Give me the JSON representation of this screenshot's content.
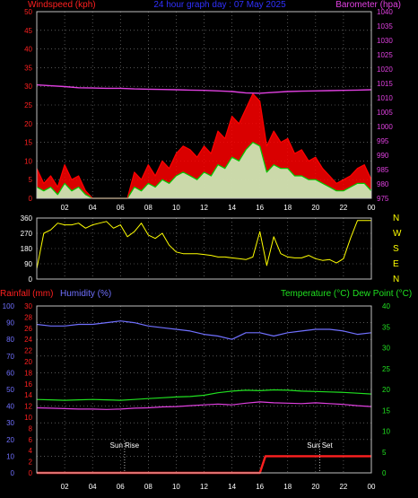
{
  "colors": {
    "background": "#000000",
    "frame": "#c0c0c0",
    "grid": "#8a8a8a",
    "tick_text": "#ffffff",
    "wind_title": "#ff2020",
    "baro_title": "#e040e0",
    "period_title": "#3030ff",
    "rain": "#ff2020",
    "humidity": "#7070ff",
    "temperature": "#20e020",
    "dew_point": "#e040e0",
    "gust": "#ff0000",
    "avg_wind": "#00cc00",
    "wind_fill": "#c8ffc8",
    "wind_dir": "#ffff00",
    "compass_text": "#ffff00",
    "sun_text": "#ffffff"
  },
  "chart_data": [
    {
      "id": "wind-baro",
      "type": "line",
      "title": "24 hour graph day : 07 May 2025",
      "ylabel": "Windspeed (kph)",
      "y2label": "Barometer (hpa)",
      "x_ticks": [
        "02",
        "04",
        "06",
        "08",
        "10",
        "12",
        "14",
        "16",
        "18",
        "20",
        "22",
        "00"
      ],
      "x_range_hours": [
        0,
        24
      ],
      "ylim": [
        0,
        50
      ],
      "y_ticks": [
        0,
        5,
        10,
        15,
        20,
        25,
        30,
        35,
        40,
        45,
        50
      ],
      "y2lim": [
        975,
        1040
      ],
      "y2_ticks": [
        975,
        980,
        985,
        990,
        995,
        1000,
        1005,
        1010,
        1015,
        1020,
        1025,
        1030,
        1035,
        1040
      ],
      "grid": true,
      "series": [
        {
          "name": "Barometer (hpa)",
          "axis": "right",
          "x": [
            0,
            1,
            2,
            3,
            4,
            5,
            6,
            7,
            8,
            9,
            10,
            11,
            12,
            13,
            14,
            15,
            16,
            17,
            18,
            19,
            20,
            21,
            22,
            23,
            24
          ],
          "values": [
            1014.5,
            1014.2,
            1013.9,
            1013.5,
            1013.4,
            1013.3,
            1013.3,
            1013.1,
            1013.0,
            1012.9,
            1012.8,
            1012.7,
            1012.6,
            1012.4,
            1012.2,
            1011.7,
            1011.6,
            1011.9,
            1012.2,
            1012.3,
            1012.4,
            1012.5,
            1012.6,
            1012.7,
            1012.8
          ]
        },
        {
          "name": "Gust (kph)",
          "axis": "left",
          "x": [
            0,
            0.5,
            1,
            1.5,
            2,
            2.5,
            3,
            3.5,
            4,
            4.5,
            5,
            5.5,
            6,
            6.5,
            7,
            7.5,
            8,
            8.5,
            9,
            9.5,
            10,
            10.5,
            11,
            11.5,
            12,
            12.5,
            13,
            13.5,
            14,
            14.5,
            15,
            15.5,
            16,
            16.5,
            17,
            17.5,
            18,
            18.5,
            19,
            19.5,
            20,
            20.5,
            21,
            21.5,
            22,
            22.5,
            23,
            23.5,
            24
          ],
          "values": [
            8,
            4,
            6,
            3,
            9,
            5,
            6,
            2,
            0,
            0,
            0,
            0,
            0,
            0,
            7,
            5,
            9,
            6,
            10,
            8,
            12,
            14,
            13,
            11,
            14,
            12,
            18,
            16,
            22,
            20,
            24,
            28,
            26,
            14,
            18,
            15,
            16,
            12,
            13,
            10,
            11,
            8,
            6,
            4,
            5,
            6,
            8,
            9,
            5
          ]
        },
        {
          "name": "Avg wind (kph)",
          "axis": "left",
          "x": [
            0,
            0.5,
            1,
            1.5,
            2,
            2.5,
            3,
            3.5,
            4,
            4.5,
            5,
            5.5,
            6,
            6.5,
            7,
            7.5,
            8,
            8.5,
            9,
            9.5,
            10,
            10.5,
            11,
            11.5,
            12,
            12.5,
            13,
            13.5,
            14,
            14.5,
            15,
            15.5,
            16,
            16.5,
            17,
            17.5,
            18,
            18.5,
            19,
            19.5,
            20,
            20.5,
            21,
            21.5,
            22,
            22.5,
            23,
            23.5,
            24
          ],
          "values": [
            3,
            2,
            3,
            1,
            4,
            2,
            3,
            1,
            0,
            0,
            0,
            0,
            0,
            0,
            3,
            2,
            4,
            3,
            5,
            4,
            6,
            7,
            6,
            5,
            7,
            6,
            9,
            8,
            11,
            10,
            13,
            15,
            14,
            7,
            9,
            8,
            8,
            6,
            6,
            5,
            5,
            4,
            3,
            2,
            2,
            3,
            4,
            4,
            2
          ]
        }
      ]
    },
    {
      "id": "wind-direction",
      "type": "line",
      "ylim": [
        0,
        360
      ],
      "y_ticks": [
        0,
        90,
        180,
        270,
        360
      ],
      "right_labels": [
        "N",
        "W",
        "S",
        "E",
        "N"
      ],
      "grid": true,
      "series": [
        {
          "name": "Wind direction",
          "x": [
            0,
            0.5,
            1,
            1.5,
            2,
            2.5,
            3,
            3.5,
            4,
            4.5,
            5,
            5.5,
            6,
            6.5,
            7,
            7.5,
            8,
            8.5,
            9,
            9.5,
            10,
            10.5,
            11,
            11.5,
            12,
            12.5,
            13,
            13.5,
            14,
            14.5,
            15,
            15.5,
            16,
            16.5,
            17,
            17.5,
            18,
            18.5,
            19,
            19.5,
            20,
            20.5,
            21,
            21.5,
            22,
            22.5,
            23,
            23.5,
            24
          ],
          "values": [
            60,
            270,
            290,
            330,
            320,
            320,
            330,
            300,
            320,
            330,
            340,
            300,
            320,
            250,
            280,
            330,
            260,
            240,
            270,
            200,
            160,
            150,
            150,
            150,
            145,
            140,
            130,
            130,
            125,
            120,
            115,
            130,
            280,
            80,
            250,
            150,
            130,
            125,
            125,
            140,
            120,
            110,
            115,
            95,
            120,
            240,
            345,
            345,
            345
          ]
        }
      ]
    },
    {
      "id": "rain-hum-temp",
      "type": "line",
      "ylabel": "Rainfall (mm)",
      "ylabel2": "Humidity (%)",
      "y2label": "Temperature (°C)",
      "y2label_b": "Dew Point (°C)",
      "x_ticks": [
        "02",
        "04",
        "06",
        "08",
        "10",
        "12",
        "14",
        "16",
        "18",
        "20",
        "22",
        "00"
      ],
      "humidity_ticks": [
        0,
        10,
        20,
        30,
        40,
        50,
        60,
        70,
        80,
        90,
        100
      ],
      "rain_ticks": [
        0,
        2,
        4,
        6,
        8,
        10,
        12,
        14,
        16,
        18,
        20,
        22,
        24,
        26,
        28,
        30
      ],
      "temp_ticks": [
        0,
        5,
        10,
        15,
        20,
        25,
        30,
        35,
        40
      ],
      "ylim_rain": [
        0,
        30
      ],
      "ylim_humidity": [
        0,
        100
      ],
      "ylim_temp": [
        0,
        40
      ],
      "grid": true,
      "annotations": [
        {
          "label": "Sun Rise",
          "hour": 6.3
        },
        {
          "label": "Sun Set",
          "hour": 20.3
        }
      ],
      "series": [
        {
          "name": "Humidity (%)",
          "axis": "humidity",
          "x": [
            0,
            1,
            2,
            3,
            4,
            5,
            6,
            7,
            8,
            9,
            10,
            11,
            12,
            13,
            14,
            15,
            16,
            17,
            18,
            19,
            20,
            21,
            22,
            23,
            24
          ],
          "values": [
            89,
            88,
            88,
            89,
            89,
            90,
            91,
            90,
            88,
            87,
            86,
            85,
            83,
            82,
            80,
            84,
            84,
            82,
            84,
            85,
            86,
            86,
            85,
            83,
            84
          ]
        },
        {
          "name": "Temperature (°C)",
          "axis": "temp",
          "x": [
            0,
            1,
            2,
            3,
            4,
            5,
            6,
            7,
            8,
            9,
            10,
            11,
            12,
            13,
            14,
            15,
            16,
            17,
            18,
            19,
            20,
            21,
            22,
            23,
            24
          ],
          "values": [
            17.6,
            17.5,
            17.4,
            17.5,
            17.6,
            17.5,
            17.4,
            17.6,
            17.8,
            18.0,
            18.2,
            18.3,
            18.6,
            19.2,
            19.6,
            19.8,
            19.7,
            19.9,
            19.8,
            19.6,
            19.5,
            19.4,
            19.3,
            19.1,
            18.9
          ]
        },
        {
          "name": "Dew Point (°C)",
          "axis": "temp",
          "x": [
            0,
            1,
            2,
            3,
            4,
            5,
            6,
            7,
            8,
            9,
            10,
            11,
            12,
            13,
            14,
            15,
            16,
            17,
            18,
            19,
            20,
            21,
            22,
            23,
            24
          ],
          "values": [
            15.6,
            15.5,
            15.4,
            15.3,
            15.3,
            15.2,
            15.3,
            15.5,
            15.6,
            15.8,
            15.9,
            16.1,
            16.3,
            16.5,
            16.3,
            16.7,
            17.0,
            16.8,
            16.7,
            16.6,
            16.8,
            16.6,
            16.4,
            16.1,
            15.9
          ]
        },
        {
          "name": "Rainfall (mm)",
          "axis": "rain",
          "x": [
            0,
            16.0,
            16.4,
            24
          ],
          "values": [
            0,
            0,
            3,
            3
          ]
        }
      ]
    }
  ]
}
